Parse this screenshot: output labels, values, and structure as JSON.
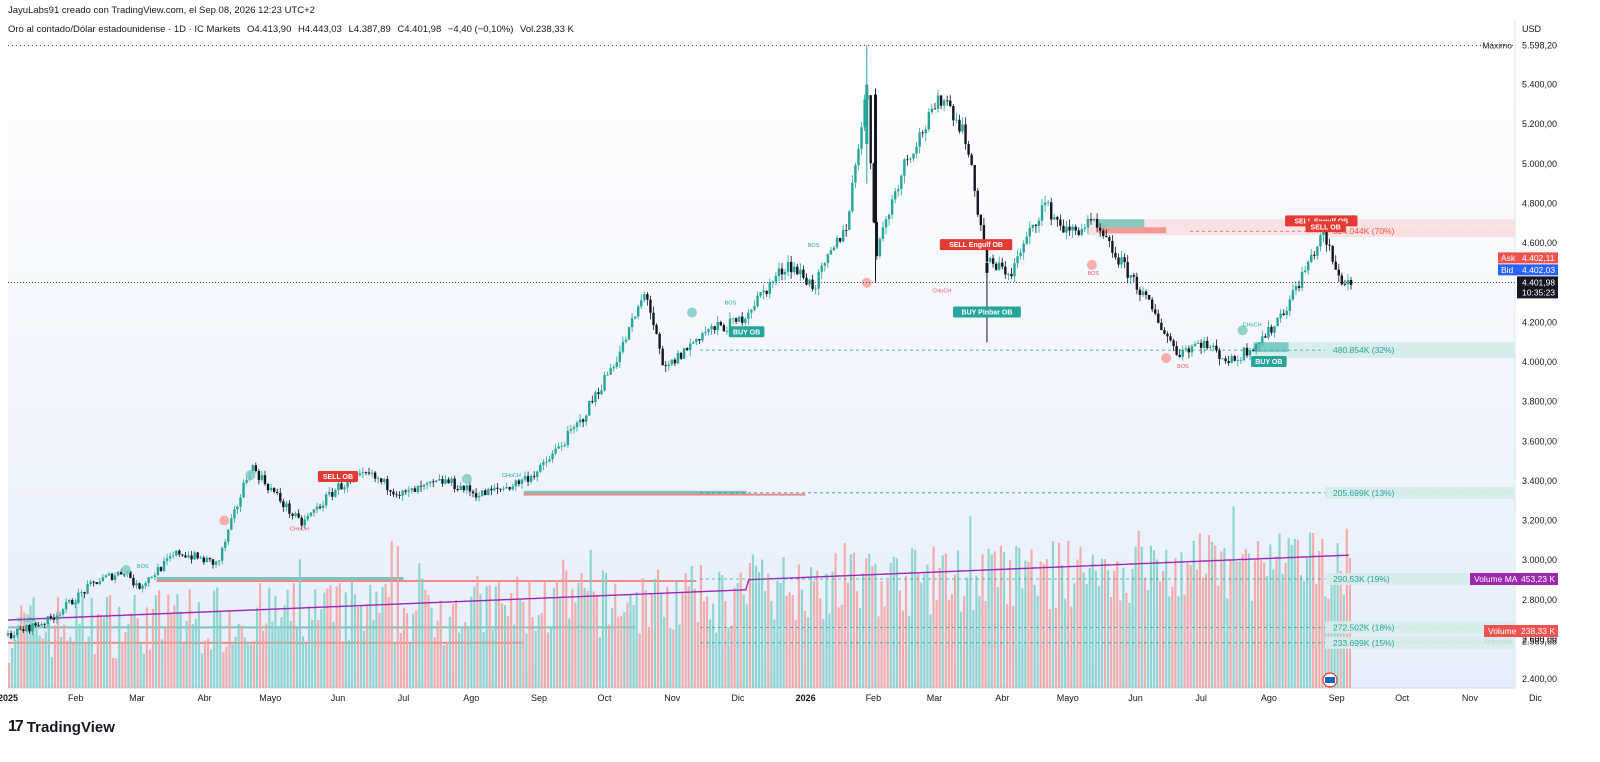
{
  "header": {
    "credit": "JayuLabs91 creado con TradingView.com, el Sep 08, 2026 12:23 UTC+2",
    "symbol": "Oro al contado/Dólar estadounidense · 1D · IC Markets",
    "open": "O4.413,90",
    "high": "H4.443,03",
    "low": "L4.387,89",
    "close": "C4.401,98",
    "change": "−4,40 (−0,10%)",
    "volume": "Vol.238,33 K",
    "currency": "USD"
  },
  "colors": {
    "up": "#26a69a",
    "down": "#ef5350",
    "ma": "#9c27b0",
    "ask": "#ef5350",
    "bid": "#2962ff",
    "last": "#131722"
  },
  "chart_data": {
    "type": "candlestick",
    "title": "Oro al contado/Dólar estadounidense · 1D · IC Markets",
    "x_ticks": [
      {
        "date": "2025-01-01",
        "label": "2025",
        "bold": true
      },
      {
        "date": "2025-02-01",
        "label": "Feb"
      },
      {
        "date": "2025-03-01",
        "label": "Mar"
      },
      {
        "date": "2025-04-01",
        "label": "Abr"
      },
      {
        "date": "2025-05-01",
        "label": "Mayo"
      },
      {
        "date": "2025-06-01",
        "label": "Jun"
      },
      {
        "date": "2025-07-01",
        "label": "Jul"
      },
      {
        "date": "2025-08-01",
        "label": "Ago"
      },
      {
        "date": "2025-09-01",
        "label": "Sep"
      },
      {
        "date": "2025-10-01",
        "label": "Oct"
      },
      {
        "date": "2025-11-01",
        "label": "Nov"
      },
      {
        "date": "2025-12-01",
        "label": "Dic"
      },
      {
        "date": "2026-01-01",
        "label": "2026",
        "bold": true
      },
      {
        "date": "2026-02-01",
        "label": "Feb"
      },
      {
        "date": "2026-03-01",
        "label": "Mar"
      },
      {
        "date": "2026-04-01",
        "label": "Abr"
      },
      {
        "date": "2026-05-01",
        "label": "Mayo"
      },
      {
        "date": "2026-06-01",
        "label": "Jun"
      },
      {
        "date": "2026-07-01",
        "label": "Jul"
      },
      {
        "date": "2026-08-01",
        "label": "Ago"
      },
      {
        "date": "2026-09-01",
        "label": "Sep"
      },
      {
        "date": "2026-10-01",
        "label": "Oct"
      },
      {
        "date": "2026-11-01",
        "label": "Nov"
      },
      {
        "date": "2026-12-01",
        "label": "Dic"
      }
    ],
    "y_ticks": [
      {
        "value": 2400,
        "label": "2.400,00"
      },
      {
        "value": 2600,
        "label": "2.600,00"
      },
      {
        "value": 2800,
        "label": "2.800,00"
      },
      {
        "value": 3000,
        "label": "3.000,00"
      },
      {
        "value": 3200,
        "label": "3.200,00"
      },
      {
        "value": 3400,
        "label": "3.400,00"
      },
      {
        "value": 3600,
        "label": "3.600,00"
      },
      {
        "value": 3800,
        "label": "3.800,00"
      },
      {
        "value": 4000,
        "label": "4.000,00"
      },
      {
        "value": 4200,
        "label": "4.200,00"
      },
      {
        "value": 4400,
        "label": "4.400,00"
      },
      {
        "value": 4600,
        "label": "4.600,00"
      },
      {
        "value": 4800,
        "label": "4.800,00"
      },
      {
        "value": 5000,
        "label": "5.000,00"
      },
      {
        "value": 5200,
        "label": "5.200,00"
      },
      {
        "value": 5400,
        "label": "5.400,00"
      }
    ],
    "price_path": [
      [
        "2025-01-01",
        2620
      ],
      [
        "2025-01-20",
        2700
      ],
      [
        "2025-02-10",
        2890
      ],
      [
        "2025-02-24",
        2950
      ],
      [
        "2025-03-01",
        2860
      ],
      [
        "2025-03-20",
        3040
      ],
      [
        "2025-04-07",
        2980
      ],
      [
        "2025-04-22",
        3480
      ],
      [
        "2025-05-15",
        3180
      ],
      [
        "2025-06-01",
        3370
      ],
      [
        "2025-06-15",
        3430
      ],
      [
        "2025-07-01",
        3330
      ],
      [
        "2025-07-20",
        3400
      ],
      [
        "2025-08-05",
        3330
      ],
      [
        "2025-08-20",
        3380
      ],
      [
        "2025-09-01",
        3450
      ],
      [
        "2025-09-20",
        3700
      ],
      [
        "2025-10-08",
        4050
      ],
      [
        "2025-10-20",
        4360
      ],
      [
        "2025-10-28",
        3950
      ],
      [
        "2025-11-15",
        4150
      ],
      [
        "2025-12-01",
        4200
      ],
      [
        "2025-12-24",
        4500
      ],
      [
        "2026-01-05",
        4380
      ],
      [
        "2026-01-20",
        4700
      ],
      [
        "2026-01-29",
        5400
      ],
      [
        "2026-02-02",
        4550
      ],
      [
        "2026-02-15",
        5000
      ],
      [
        "2026-03-05",
        5350
      ],
      [
        "2026-03-15",
        5150
      ],
      [
        "2026-03-25",
        4500
      ],
      [
        "2026-04-05",
        4450
      ],
      [
        "2026-04-20",
        4800
      ],
      [
        "2026-05-01",
        4650
      ],
      [
        "2026-05-12",
        4700
      ],
      [
        "2026-06-01",
        4400
      ],
      [
        "2026-06-20",
        4050
      ],
      [
        "2026-07-01",
        4100
      ],
      [
        "2026-07-15",
        4000
      ],
      [
        "2026-08-01",
        4150
      ],
      [
        "2026-08-10",
        4300
      ],
      [
        "2026-08-26",
        4650
      ],
      [
        "2026-09-02",
        4420
      ],
      [
        "2026-09-08",
        4402
      ]
    ],
    "candles": [
      {
        "date": "2026-01-29",
        "open": 5100,
        "high": 5598.2,
        "low": 4900,
        "close": 5400
      },
      {
        "date": "2026-02-02",
        "open": 5350,
        "high": 5380,
        "low": 4400,
        "close": 4700
      },
      {
        "date": "2026-03-25",
        "open": 4500,
        "high": 4550,
        "low": 4100,
        "close": 4450
      }
    ],
    "last_price": {
      "value": 4401.98,
      "label": "4.401,98",
      "countdown": "10:35:23"
    },
    "ask": {
      "label": "Ask",
      "value": "4.402,11"
    },
    "bid": {
      "label": "Bid",
      "value": "4.402,03"
    },
    "max_marker": {
      "label": "Máximo",
      "value": 5598.2,
      "value_label": "5.598,20"
    },
    "min_marker": {
      "label": "Mínimo",
      "value": 2589.68,
      "value_label": "2.589,68"
    },
    "order_blocks": [
      {
        "kind": "sell",
        "label": "SELL OB",
        "date": "2025-06-01",
        "price": 3420
      },
      {
        "kind": "sell",
        "label": "SELL Engulf OB",
        "date": "2026-03-20",
        "price": 4590
      },
      {
        "kind": "sell",
        "label": "SELL Engulf OB",
        "date": "2026-08-25",
        "price": 4710
      },
      {
        "kind": "sell",
        "label": "SELL OB",
        "date": "2026-08-27",
        "price": 4680
      },
      {
        "kind": "buy",
        "label": "BUY OB",
        "date": "2025-12-05",
        "price": 4150
      },
      {
        "kind": "buy",
        "label": "BUY Pinbar OB",
        "date": "2026-03-25",
        "price": 4250
      },
      {
        "kind": "buy",
        "label": "BUY OB",
        "date": "2026-08-01",
        "price": 4000
      }
    ],
    "structure_labels": [
      {
        "label": "CHoCH",
        "date": "2025-01-05",
        "price": 2690,
        "kind": "up"
      },
      {
        "label": "BOS",
        "date": "2025-03-01",
        "price": 2960,
        "kind": "up"
      },
      {
        "label": "CHoCH",
        "date": "2025-05-10",
        "price": 3150,
        "kind": "down"
      },
      {
        "label": "CHoCH",
        "date": "2025-08-15",
        "price": 3420,
        "kind": "up"
      },
      {
        "label": "BOS",
        "date": "2025-11-25",
        "price": 4290,
        "kind": "up"
      },
      {
        "label": "BOS",
        "date": "2026-01-02",
        "price": 4580,
        "kind": "up"
      },
      {
        "label": "CHoCH",
        "date": "2026-02-28",
        "price": 4350,
        "kind": "down"
      },
      {
        "label": "BOS",
        "date": "2026-05-10",
        "price": 4440,
        "kind": "down"
      },
      {
        "label": "BOS",
        "date": "2026-06-20",
        "price": 3970,
        "kind": "down"
      },
      {
        "label": "CHoCH",
        "date": "2026-07-20",
        "price": 4180,
        "kind": "up"
      }
    ],
    "swing_points": [
      {
        "date": "2025-02-24",
        "price": 2950,
        "kind": "up"
      },
      {
        "date": "2025-04-22",
        "price": 3430,
        "kind": "up"
      },
      {
        "date": "2025-04-10",
        "price": 3200,
        "kind": "down"
      },
      {
        "date": "2025-07-30",
        "price": 3410,
        "kind": "up"
      },
      {
        "date": "2025-11-10",
        "price": 4250,
        "kind": "up"
      },
      {
        "date": "2026-01-29",
        "price": 4400,
        "kind": "down"
      },
      {
        "date": "2026-05-12",
        "price": 4490,
        "kind": "down"
      },
      {
        "date": "2026-06-15",
        "price": 4020,
        "kind": "down"
      },
      {
        "date": "2026-07-20",
        "price": 4160,
        "kind": "up"
      }
    ],
    "zones": [
      {
        "kind": "sell",
        "start": "2026-05-10",
        "end": "2026-12-31",
        "low": 4640,
        "high": 4720
      },
      {
        "kind": "sell-block",
        "start": "2026-05-15",
        "end": "2026-06-15",
        "low": 4650,
        "high": 4680
      },
      {
        "kind": "buy-block",
        "start": "2026-05-15",
        "end": "2026-06-05",
        "low": 4680,
        "high": 4720
      },
      {
        "kind": "buy",
        "start": "2026-07-25",
        "end": "2026-12-31",
        "low": 4020,
        "high": 4100
      },
      {
        "kind": "buy-block",
        "start": "2026-07-25",
        "end": "2026-08-10",
        "low": 4050,
        "high": 4100
      },
      {
        "kind": "buy-strip",
        "start": "2025-08-25",
        "end": "2025-12-05",
        "low": 3335,
        "high": 3350
      },
      {
        "kind": "sell-strip",
        "start": "2025-08-25",
        "end": "2026-01-01",
        "low": 3328,
        "high": 3336
      },
      {
        "kind": "buy-strip",
        "start": "2025-03-10",
        "end": "2025-07-01",
        "low": 2900,
        "high": 2915
      },
      {
        "kind": "sell-strip",
        "start": "2025-03-10",
        "end": "2025-11-12",
        "low": 2892,
        "high": 2900
      },
      {
        "kind": "buy-strip",
        "start": "2025-01-01",
        "end": "2025-10-15",
        "low": 2656,
        "high": 2666
      },
      {
        "kind": "sell-strip",
        "start": "2025-01-01",
        "end": "2025-08-25",
        "low": 2578,
        "high": 2588
      }
    ],
    "volume_levels": [
      {
        "label": "524.044K (70%)",
        "price": 4660,
        "kind": "sell"
      },
      {
        "label": "480.854K (32%)",
        "price": 4060,
        "kind": "buy"
      },
      {
        "label": "205.699K (13%)",
        "price": 3340,
        "kind": "buy"
      },
      {
        "label": "290.53K (19%)",
        "price": 2905,
        "kind": "buy"
      },
      {
        "label": "272.502K (18%)",
        "price": 2661,
        "kind": "buy"
      },
      {
        "label": "233.699K (15%)",
        "price": 2583,
        "kind": "buy"
      }
    ],
    "volume_ma": {
      "name": "Volume MA",
      "value": "453,23 K"
    },
    "volume_last": {
      "name": "Volume",
      "value": "238,33 K"
    }
  },
  "footer": {
    "brand": "TradingView"
  }
}
